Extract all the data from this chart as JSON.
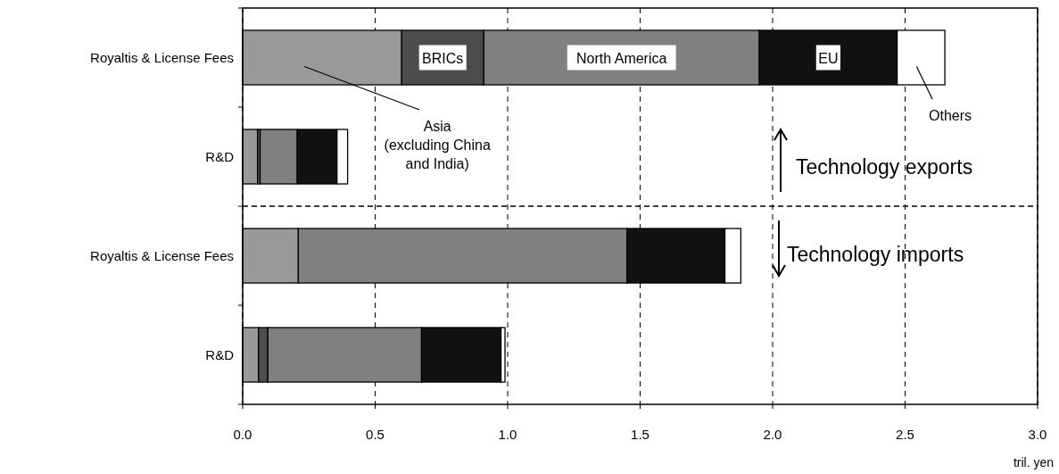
{
  "chart_data": {
    "type": "bar",
    "orientation": "horizontal",
    "stacked": true,
    "categories": [
      "Royaltis & License Fees",
      "R&D",
      "Royaltis & License Fees",
      "R&D"
    ],
    "series": [
      {
        "name": "Asia (excluding China and India)",
        "color": "#999999",
        "values": [
          0.6,
          0.056,
          0.21,
          0.06
        ]
      },
      {
        "name": "BRICs",
        "color": "#4d4d4d",
        "values": [
          0.31,
          0.01,
          null,
          0.035
        ]
      },
      {
        "name": "North America",
        "color": "#808080",
        "values": [
          1.04,
          0.14,
          1.24,
          0.58
        ]
      },
      {
        "name": "EU",
        "color": "#111111",
        "values": [
          0.52,
          0.15,
          0.37,
          0.3
        ]
      },
      {
        "name": "Others",
        "color": "#ffffff",
        "values": [
          0.18,
          0.04,
          0.06,
          0.015
        ]
      }
    ],
    "xlim": [
      0,
      3
    ],
    "xticks": [
      {
        "value": 0,
        "label": "0.0"
      },
      0.5,
      {
        "value": 1,
        "label": "1.0"
      },
      1.5,
      {
        "value": 2,
        "label": "2.0"
      },
      2.5,
      {
        "value": 3,
        "label": "3.0"
      }
    ],
    "xlabel": "tril. yen",
    "grid": "x",
    "annotations": [
      "Technology exports",
      "Technology imports"
    ]
  }
}
